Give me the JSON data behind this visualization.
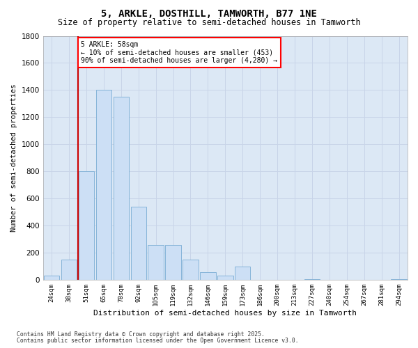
{
  "title1": "5, ARKLE, DOSTHILL, TAMWORTH, B77 1NE",
  "title2": "Size of property relative to semi-detached houses in Tamworth",
  "xlabel": "Distribution of semi-detached houses by size in Tamworth",
  "ylabel": "Number of semi-detached properties",
  "categories": [
    "24sqm",
    "38sqm",
    "51sqm",
    "65sqm",
    "78sqm",
    "92sqm",
    "105sqm",
    "119sqm",
    "132sqm",
    "146sqm",
    "159sqm",
    "173sqm",
    "186sqm",
    "200sqm",
    "213sqm",
    "227sqm",
    "240sqm",
    "254sqm",
    "267sqm",
    "281sqm",
    "294sqm"
  ],
  "values": [
    30,
    150,
    800,
    1400,
    1350,
    540,
    260,
    260,
    150,
    60,
    30,
    100,
    0,
    0,
    0,
    5,
    0,
    0,
    0,
    0,
    5
  ],
  "bar_color": "#ccdff5",
  "bar_edge_color": "#7aadd4",
  "vline_color": "#cc0000",
  "annotation_text": "5 ARKLE: 58sqm\n← 10% of semi-detached houses are smaller (453)\n90% of semi-detached houses are larger (4,280) →",
  "ylim": [
    0,
    1800
  ],
  "yticks": [
    0,
    200,
    400,
    600,
    800,
    1000,
    1200,
    1400,
    1600,
    1800
  ],
  "grid_color": "#c8d4e8",
  "bg_color": "#dce8f5",
  "footer1": "Contains HM Land Registry data © Crown copyright and database right 2025.",
  "footer2": "Contains public sector information licensed under the Open Government Licence v3.0."
}
